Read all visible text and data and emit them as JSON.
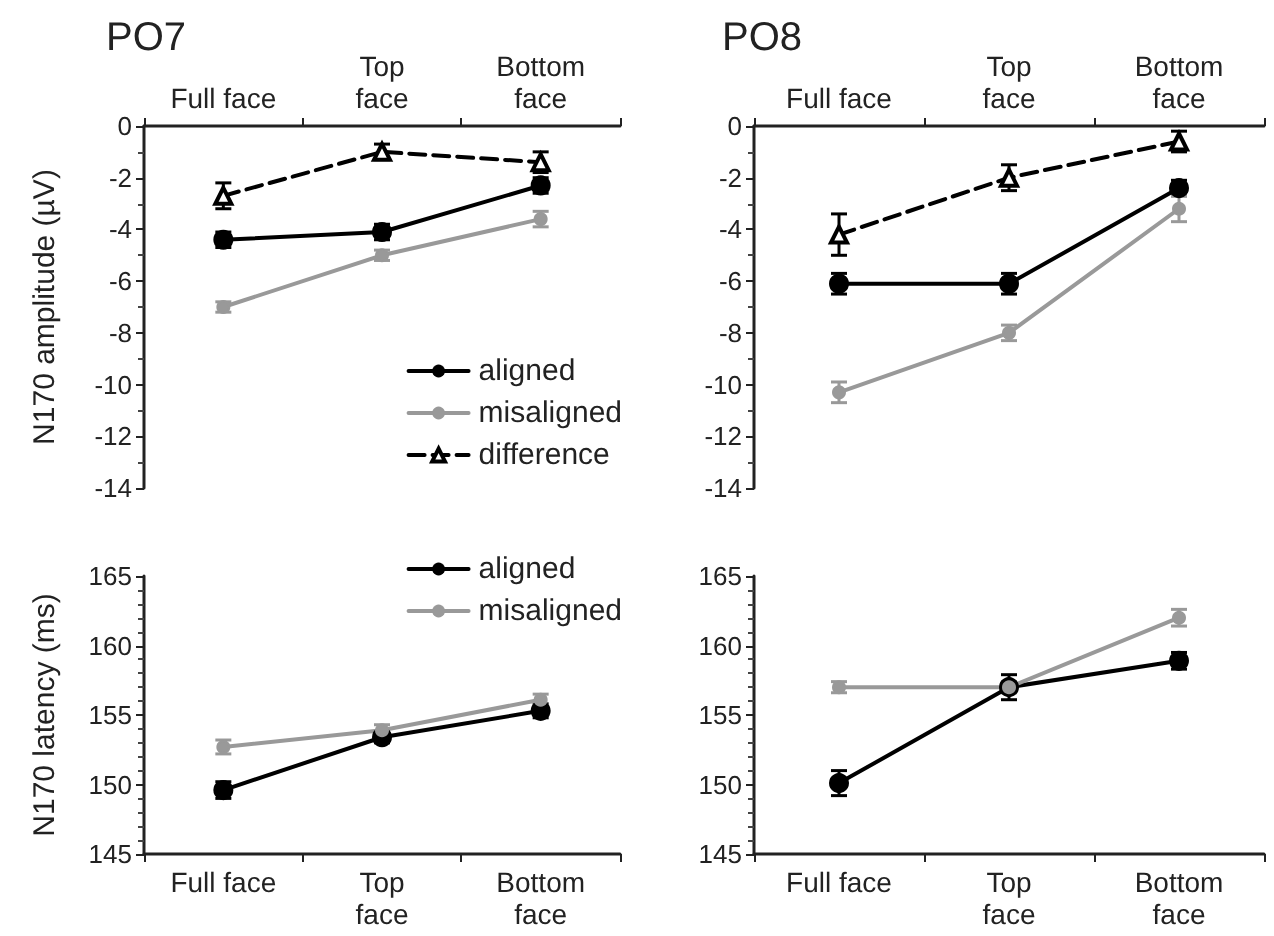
{
  "chart_data": [
    {
      "type": "line",
      "title": "PO7",
      "ylabel": "N170 amplitude (µV)",
      "categories": [
        "Full face",
        "Top face",
        "Bottom face"
      ],
      "ylim": [
        -14,
        0
      ],
      "yticks": [
        -14,
        -12,
        -10,
        -8,
        -6,
        -4,
        -2,
        0
      ],
      "legend": "bottom right",
      "series": [
        {
          "name": "aligned",
          "color": "#000000",
          "marker": "circle",
          "line_style": "solid",
          "values": [
            -4.4,
            -4.1,
            -2.3
          ],
          "errors": [
            0.3,
            0.3,
            0.3
          ]
        },
        {
          "name": "misaligned",
          "color": "#999999",
          "marker": "circle",
          "line_style": "solid",
          "values": [
            -7.0,
            -5.0,
            -3.6
          ],
          "errors": [
            0.2,
            0.2,
            0.3
          ]
        },
        {
          "name": "difference",
          "color": "#000000",
          "marker": "triangle",
          "line_style": "dashed",
          "values": [
            -2.7,
            -1.0,
            -1.4
          ],
          "errors": [
            0.5,
            0.3,
            0.4
          ]
        }
      ]
    },
    {
      "type": "line",
      "title": "PO8",
      "categories": [
        "Full face",
        "Top face",
        "Bottom face"
      ],
      "ylim": [
        -14,
        0
      ],
      "yticks": [
        -14,
        -12,
        -10,
        -8,
        -6,
        -4,
        -2,
        0
      ],
      "series": [
        {
          "color": "#000000",
          "marker": "circle",
          "line_style": "solid",
          "values": [
            -6.1,
            -6.1,
            -2.4
          ],
          "errors": [
            0.4,
            0.4,
            0.3
          ]
        },
        {
          "color": "#999999",
          "marker": "circle",
          "line_style": "solid",
          "values": [
            -10.3,
            -8.0,
            -3.2
          ],
          "errors": [
            0.4,
            0.3,
            0.5
          ]
        },
        {
          "color": "#000000",
          "marker": "triangle",
          "line_style": "dashed",
          "values": [
            -4.2,
            -2.0,
            -0.6
          ],
          "errors": [
            0.8,
            0.5,
            0.4
          ]
        }
      ]
    },
    {
      "type": "line",
      "ylabel": "N170 latency (ms)",
      "categories": [
        "Full face",
        "Top face",
        "Bottom face"
      ],
      "ylim": [
        145,
        165
      ],
      "yticks": [
        145,
        150,
        155,
        160,
        165
      ],
      "legend": "top right",
      "series": [
        {
          "name": "aligned",
          "color": "#000000",
          "marker": "circle",
          "line_style": "solid",
          "values": [
            149.6,
            153.4,
            155.3
          ],
          "errors": [
            0.6,
            0.4,
            0.5
          ]
        },
        {
          "name": "misaligned",
          "color": "#999999",
          "marker": "circle",
          "line_style": "solid",
          "values": [
            152.7,
            153.9,
            156.1
          ],
          "errors": [
            0.5,
            0.4,
            0.4
          ]
        }
      ]
    },
    {
      "type": "line",
      "categories": [
        "Full face",
        "Top face",
        "Bottom face"
      ],
      "ylim": [
        145,
        165
      ],
      "yticks": [
        145,
        150,
        155,
        160,
        165
      ],
      "series": [
        {
          "color": "#000000",
          "marker": "circle",
          "line_style": "solid",
          "values": [
            150.1,
            157.0,
            158.9
          ],
          "errors": [
            0.9,
            0.9,
            0.6
          ]
        },
        {
          "color": "#999999",
          "marker": "circle",
          "line_style": "solid",
          "values": [
            157.0,
            157.0,
            162.0
          ],
          "errors": [
            0.4,
            0.4,
            0.6
          ]
        }
      ]
    }
  ]
}
